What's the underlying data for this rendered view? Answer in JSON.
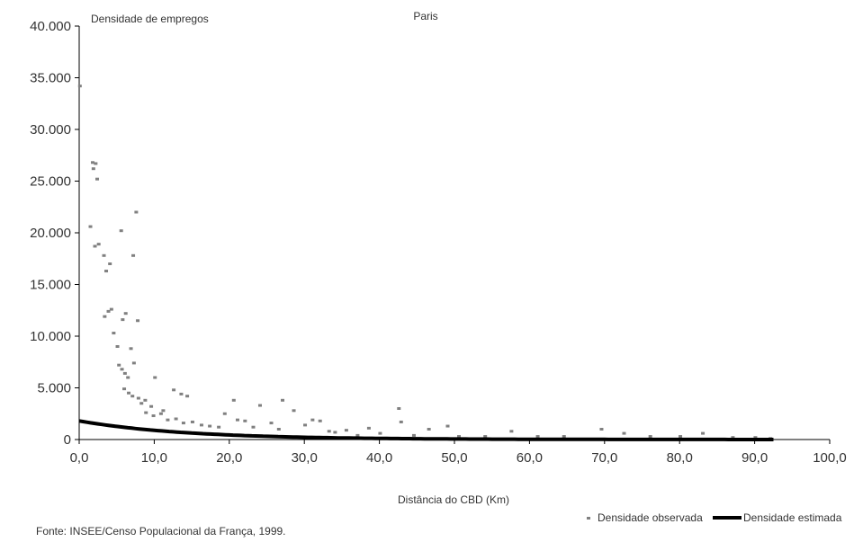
{
  "chart_data": {
    "type": "scatter",
    "title": "Paris",
    "ylabel": "Densidade de empregos",
    "xlabel": "Distância do CBD (Km)",
    "xlim": [
      0,
      100
    ],
    "ylim": [
      0,
      40000
    ],
    "x_ticks": [
      "0,0",
      "10,0",
      "20,0",
      "30,0",
      "40,0",
      "50,0",
      "60,0",
      "70,0",
      "80,0",
      "90,0",
      "100,0"
    ],
    "y_ticks": [
      "0",
      "5.000",
      "10.000",
      "15.000",
      "20.000",
      "25.000",
      "30.000",
      "35.000",
      "40.000"
    ],
    "grid": false,
    "legend_position": "bottom-right",
    "series": [
      {
        "name": "Densidade observada",
        "kind": "points",
        "color": "#808080",
        "points": [
          [
            0.1,
            34200
          ],
          [
            1.5,
            20600
          ],
          [
            1.8,
            26800
          ],
          [
            1.9,
            26200
          ],
          [
            2.2,
            26700
          ],
          [
            2.4,
            25200
          ],
          [
            2.1,
            18700
          ],
          [
            2.6,
            18900
          ],
          [
            3.3,
            17800
          ],
          [
            3.6,
            16300
          ],
          [
            4.1,
            17000
          ],
          [
            3.4,
            11900
          ],
          [
            3.9,
            12400
          ],
          [
            4.3,
            12600
          ],
          [
            4.6,
            10300
          ],
          [
            5.1,
            9000
          ],
          [
            5.6,
            20200
          ],
          [
            5.8,
            11600
          ],
          [
            6.2,
            12200
          ],
          [
            7.2,
            17800
          ],
          [
            7.6,
            22000
          ],
          [
            7.8,
            11500
          ],
          [
            5.3,
            7200
          ],
          [
            5.7,
            6800
          ],
          [
            6.1,
            6400
          ],
          [
            6.5,
            6000
          ],
          [
            6.9,
            8800
          ],
          [
            7.3,
            7400
          ],
          [
            6.0,
            4900
          ],
          [
            6.6,
            4500
          ],
          [
            7.1,
            4200
          ],
          [
            7.9,
            4000
          ],
          [
            8.3,
            3500
          ],
          [
            8.8,
            3800
          ],
          [
            9.6,
            3200
          ],
          [
            10.1,
            6000
          ],
          [
            11.2,
            2800
          ],
          [
            12.6,
            4800
          ],
          [
            13.6,
            4400
          ],
          [
            14.4,
            4200
          ],
          [
            8.9,
            2600
          ],
          [
            9.9,
            2300
          ],
          [
            10.9,
            2500
          ],
          [
            11.8,
            1900
          ],
          [
            12.9,
            2000
          ],
          [
            13.9,
            1600
          ],
          [
            15.1,
            1700
          ],
          [
            16.3,
            1400
          ],
          [
            17.4,
            1300
          ],
          [
            18.6,
            1200
          ],
          [
            19.4,
            2500
          ],
          [
            20.6,
            3800
          ],
          [
            21.1,
            1900
          ],
          [
            22.1,
            1800
          ],
          [
            23.2,
            1200
          ],
          [
            24.1,
            3300
          ],
          [
            25.6,
            1600
          ],
          [
            26.6,
            1000
          ],
          [
            27.1,
            3800
          ],
          [
            28.6,
            2800
          ],
          [
            30.1,
            1400
          ],
          [
            31.1,
            1900
          ],
          [
            32.1,
            1800
          ],
          [
            33.3,
            800
          ],
          [
            34.1,
            700
          ],
          [
            35.6,
            900
          ],
          [
            37.1,
            400
          ],
          [
            38.6,
            1100
          ],
          [
            40.1,
            600
          ],
          [
            42.6,
            3000
          ],
          [
            42.9,
            1700
          ],
          [
            44.6,
            400
          ],
          [
            46.6,
            1000
          ],
          [
            49.1,
            1300
          ],
          [
            50.6,
            300
          ],
          [
            54.1,
            300
          ],
          [
            57.6,
            800
          ],
          [
            61.1,
            300
          ],
          [
            64.6,
            300
          ],
          [
            69.6,
            1000
          ],
          [
            72.6,
            600
          ],
          [
            76.1,
            300
          ],
          [
            80.1,
            300
          ],
          [
            83.1,
            600
          ],
          [
            87.1,
            200
          ],
          [
            90.1,
            200
          ],
          [
            92.1,
            100
          ]
        ]
      },
      {
        "name": "Densidade estimada",
        "kind": "line",
        "color": "#000000",
        "a": 1800,
        "b": 0.07,
        "x_range": [
          0,
          92.5
        ]
      }
    ]
  },
  "source": "Fonte: INSEE/Censo Populacional da França, 1999."
}
